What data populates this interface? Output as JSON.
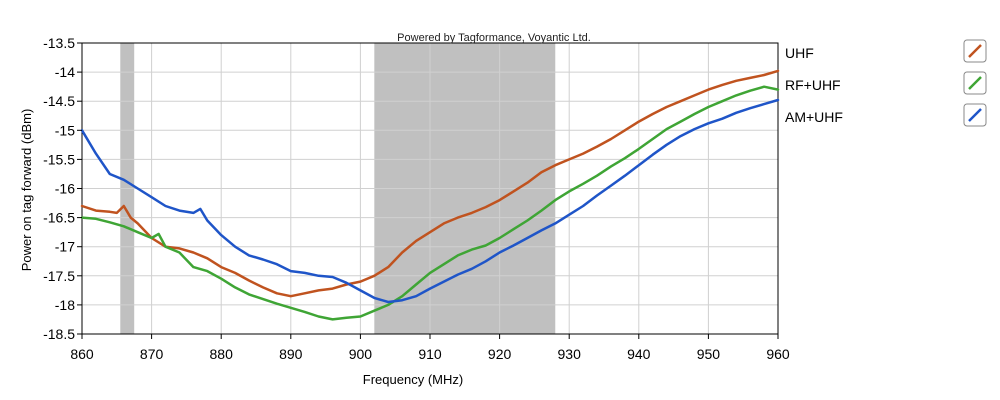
{
  "credit": "Powered by Tagformance, Voyantic Ltd.",
  "chart_data": {
    "type": "line",
    "xlabel": "Frequency (MHz)",
    "ylabel": "Power on tag forward (dBm)",
    "xlim": [
      860,
      960
    ],
    "ylim": [
      -18.5,
      -13.5
    ],
    "x_ticks": [
      860,
      870,
      880,
      890,
      900,
      910,
      920,
      930,
      940,
      950,
      960
    ],
    "x_tick_labels": [
      "860",
      "870",
      "880",
      "890",
      "900",
      "910",
      "920",
      "930",
      "940",
      "950",
      "960"
    ],
    "y_ticks": [
      -13.5,
      -14,
      -14.5,
      -15,
      -15.5,
      -16,
      -16.5,
      -17,
      -17.5,
      -18,
      -18.5
    ],
    "y_tick_labels": [
      "-13.5",
      "-14",
      "-14.5",
      "-15",
      "-15.5",
      "-16",
      "-16.5",
      "-17",
      "-17.5",
      "-18",
      "-18.5"
    ],
    "grid": true,
    "legend_position": "right",
    "shaded_bands": [
      {
        "x0": 865.5,
        "x1": 867.5,
        "color": "#c0c0c0"
      },
      {
        "x0": 902,
        "x1": 928,
        "color": "#c0c0c0"
      }
    ],
    "series": [
      {
        "name": "UHF",
        "color": "#c0531f",
        "x": [
          860,
          862,
          864,
          865,
          866,
          867,
          868,
          870,
          872,
          874,
          876,
          878,
          880,
          882,
          884,
          886,
          888,
          890,
          892,
          894,
          896,
          898,
          900,
          902,
          904,
          906,
          908,
          910,
          912,
          914,
          916,
          918,
          920,
          922,
          924,
          926,
          928,
          930,
          932,
          934,
          936,
          938,
          940,
          942,
          944,
          946,
          948,
          950,
          952,
          954,
          956,
          958,
          960
        ],
        "values": [
          -16.3,
          -16.38,
          -16.4,
          -16.42,
          -16.3,
          -16.5,
          -16.6,
          -16.85,
          -17.0,
          -17.03,
          -17.1,
          -17.2,
          -17.35,
          -17.45,
          -17.58,
          -17.7,
          -17.8,
          -17.85,
          -17.8,
          -17.75,
          -17.72,
          -17.65,
          -17.6,
          -17.5,
          -17.35,
          -17.1,
          -16.9,
          -16.75,
          -16.6,
          -16.5,
          -16.42,
          -16.32,
          -16.2,
          -16.05,
          -15.9,
          -15.72,
          -15.6,
          -15.5,
          -15.4,
          -15.28,
          -15.15,
          -15.0,
          -14.85,
          -14.72,
          -14.6,
          -14.5,
          -14.4,
          -14.3,
          -14.22,
          -14.15,
          -14.1,
          -14.05,
          -13.98
        ]
      },
      {
        "name": "RF+UHF",
        "color": "#3fa535",
        "x": [
          860,
          862,
          864,
          866,
          868,
          870,
          871,
          872,
          874,
          876,
          878,
          880,
          882,
          884,
          886,
          888,
          890,
          892,
          894,
          896,
          898,
          900,
          902,
          904,
          906,
          908,
          910,
          912,
          914,
          916,
          918,
          920,
          922,
          924,
          926,
          928,
          930,
          932,
          934,
          936,
          938,
          940,
          942,
          944,
          946,
          948,
          950,
          952,
          954,
          956,
          958,
          960
        ],
        "values": [
          -16.5,
          -16.52,
          -16.58,
          -16.65,
          -16.75,
          -16.85,
          -16.78,
          -17.0,
          -17.1,
          -17.35,
          -17.42,
          -17.55,
          -17.7,
          -17.82,
          -17.9,
          -17.98,
          -18.05,
          -18.12,
          -18.2,
          -18.25,
          -18.22,
          -18.2,
          -18.1,
          -18.0,
          -17.85,
          -17.65,
          -17.45,
          -17.3,
          -17.15,
          -17.05,
          -16.98,
          -16.85,
          -16.7,
          -16.55,
          -16.38,
          -16.2,
          -16.05,
          -15.92,
          -15.78,
          -15.62,
          -15.48,
          -15.32,
          -15.15,
          -14.98,
          -14.85,
          -14.72,
          -14.6,
          -14.5,
          -14.4,
          -14.32,
          -14.25,
          -14.3
        ]
      },
      {
        "name": "AM+UHF",
        "color": "#1f55c8",
        "x": [
          860,
          862,
          864,
          866,
          868,
          870,
          872,
          874,
          876,
          877,
          878,
          880,
          882,
          884,
          886,
          888,
          890,
          892,
          894,
          896,
          898,
          900,
          902,
          904,
          906,
          908,
          910,
          912,
          914,
          916,
          918,
          920,
          922,
          924,
          926,
          928,
          930,
          932,
          934,
          936,
          938,
          940,
          942,
          944,
          946,
          948,
          950,
          952,
          954,
          956,
          958,
          960
        ],
        "values": [
          -15.0,
          -15.4,
          -15.75,
          -15.85,
          -16.0,
          -16.15,
          -16.3,
          -16.38,
          -16.42,
          -16.35,
          -16.55,
          -16.8,
          -17.0,
          -17.15,
          -17.22,
          -17.3,
          -17.42,
          -17.45,
          -17.5,
          -17.52,
          -17.62,
          -17.75,
          -17.88,
          -17.95,
          -17.92,
          -17.85,
          -17.72,
          -17.6,
          -17.48,
          -17.38,
          -17.25,
          -17.1,
          -16.98,
          -16.85,
          -16.72,
          -16.6,
          -16.45,
          -16.3,
          -16.12,
          -15.95,
          -15.78,
          -15.6,
          -15.42,
          -15.25,
          -15.1,
          -14.98,
          -14.88,
          -14.8,
          -14.7,
          -14.62,
          -14.55,
          -14.48
        ]
      }
    ]
  }
}
